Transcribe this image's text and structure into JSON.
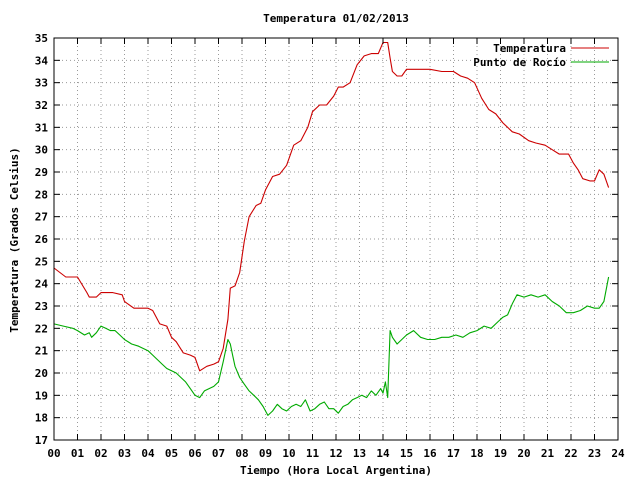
{
  "chart_data": {
    "type": "line",
    "title": "Temperatura 01/02/2013",
    "xlabel": "Tiempo (Hora Local Argentina)",
    "ylabel": "Temperatura (Grados Celsius)",
    "xlim": [
      0,
      24
    ],
    "ylim": [
      17,
      35
    ],
    "x_ticks": [
      "00",
      "01",
      "02",
      "03",
      "04",
      "05",
      "06",
      "07",
      "08",
      "09",
      "10",
      "11",
      "12",
      "13",
      "14",
      "15",
      "16",
      "17",
      "18",
      "19",
      "20",
      "21",
      "22",
      "23",
      "24"
    ],
    "y_ticks": [
      17,
      18,
      19,
      20,
      21,
      22,
      23,
      24,
      25,
      26,
      27,
      28,
      29,
      30,
      31,
      32,
      33,
      34,
      35
    ],
    "grid": true,
    "legend_position": "top-right",
    "series": [
      {
        "name": "Temperatura",
        "color": "#cc0000",
        "x": [
          0.0,
          0.5,
          1.0,
          1.4,
          1.5,
          1.8,
          2.0,
          2.5,
          2.9,
          3.0,
          3.4,
          4.0,
          4.2,
          4.5,
          4.8,
          5.0,
          5.2,
          5.5,
          5.8,
          6.0,
          6.2,
          6.5,
          6.8,
          7.0,
          7.2,
          7.4,
          7.5,
          7.7,
          7.9,
          8.1,
          8.3,
          8.6,
          8.8,
          9.0,
          9.3,
          9.6,
          9.9,
          10.2,
          10.5,
          10.8,
          11.0,
          11.3,
          11.6,
          11.9,
          12.1,
          12.3,
          12.6,
          12.9,
          13.2,
          13.5,
          13.8,
          14.0,
          14.2,
          14.3,
          14.4,
          14.6,
          14.8,
          15.0,
          15.4,
          16.0,
          16.5,
          17.0,
          17.3,
          17.6,
          17.9,
          18.2,
          18.5,
          18.8,
          19.1,
          19.5,
          19.8,
          20.2,
          20.5,
          20.9,
          21.2,
          21.5,
          21.9,
          22.1,
          22.3,
          22.5,
          22.8,
          23.0,
          23.2,
          23.4,
          23.6
        ],
        "values": [
          24.7,
          24.3,
          24.3,
          23.6,
          23.4,
          23.4,
          23.6,
          23.6,
          23.5,
          23.2,
          22.9,
          22.9,
          22.8,
          22.2,
          22.1,
          21.6,
          21.4,
          20.9,
          20.8,
          20.7,
          20.1,
          20.3,
          20.4,
          20.5,
          21.1,
          22.4,
          23.8,
          23.9,
          24.5,
          25.9,
          27.0,
          27.5,
          27.6,
          28.2,
          28.8,
          28.9,
          29.3,
          30.2,
          30.4,
          31.0,
          31.7,
          32.0,
          32.0,
          32.4,
          32.8,
          32.8,
          33.0,
          33.8,
          34.2,
          34.3,
          34.3,
          34.8,
          34.8,
          34.1,
          33.5,
          33.3,
          33.3,
          33.6,
          33.6,
          33.6,
          33.5,
          33.5,
          33.3,
          33.2,
          33.0,
          32.3,
          31.8,
          31.6,
          31.2,
          30.8,
          30.7,
          30.4,
          30.3,
          30.2,
          30.0,
          29.8,
          29.8,
          29.4,
          29.1,
          28.7,
          28.6,
          28.6,
          29.1,
          28.9,
          28.3
        ]
      },
      {
        "name": "Punto de Rocío",
        "color": "#00aa00",
        "x": [
          0.0,
          0.4,
          0.8,
          1.0,
          1.3,
          1.5,
          1.6,
          1.8,
          2.0,
          2.2,
          2.4,
          2.6,
          2.8,
          3.0,
          3.3,
          3.6,
          4.0,
          4.2,
          4.4,
          4.6,
          4.8,
          5.0,
          5.2,
          5.4,
          5.6,
          5.8,
          6.0,
          6.2,
          6.4,
          6.6,
          6.8,
          7.0,
          7.2,
          7.4,
          7.5,
          7.6,
          7.7,
          7.9,
          8.1,
          8.3,
          8.5,
          8.7,
          8.9,
          9.1,
          9.3,
          9.5,
          9.7,
          9.9,
          10.1,
          10.3,
          10.5,
          10.7,
          10.9,
          11.1,
          11.3,
          11.5,
          11.7,
          11.9,
          12.1,
          12.3,
          12.5,
          12.7,
          12.9,
          13.1,
          13.3,
          13.5,
          13.7,
          13.9,
          14.0,
          14.1,
          14.2,
          14.3,
          14.4,
          14.6,
          14.8,
          15.0,
          15.3,
          15.6,
          15.9,
          16.2,
          16.5,
          16.8,
          17.1,
          17.4,
          17.7,
          18.0,
          18.3,
          18.6,
          18.9,
          19.1,
          19.3,
          19.5,
          19.7,
          20.0,
          20.3,
          20.6,
          20.9,
          21.2,
          21.5,
          21.8,
          22.1,
          22.4,
          22.7,
          23.0,
          23.2,
          23.4,
          23.6
        ],
        "values": [
          22.2,
          22.1,
          22.0,
          21.9,
          21.7,
          21.8,
          21.6,
          21.8,
          22.1,
          22.0,
          21.9,
          21.9,
          21.7,
          21.5,
          21.3,
          21.2,
          21.0,
          20.8,
          20.6,
          20.4,
          20.2,
          20.1,
          20.0,
          19.8,
          19.6,
          19.3,
          19.0,
          18.9,
          19.2,
          19.3,
          19.4,
          19.6,
          20.5,
          21.5,
          21.3,
          20.8,
          20.3,
          19.8,
          19.5,
          19.2,
          19.0,
          18.8,
          18.5,
          18.1,
          18.3,
          18.6,
          18.4,
          18.3,
          18.5,
          18.6,
          18.5,
          18.8,
          18.3,
          18.4,
          18.6,
          18.7,
          18.4,
          18.4,
          18.2,
          18.5,
          18.6,
          18.8,
          18.9,
          19.0,
          18.9,
          19.2,
          19.0,
          19.3,
          19.1,
          19.6,
          18.9,
          21.9,
          21.6,
          21.3,
          21.5,
          21.7,
          21.9,
          21.6,
          21.5,
          21.5,
          21.6,
          21.6,
          21.7,
          21.6,
          21.8,
          21.9,
          22.1,
          22.0,
          22.3,
          22.5,
          22.6,
          23.1,
          23.5,
          23.4,
          23.5,
          23.4,
          23.5,
          23.2,
          23.0,
          22.7,
          22.7,
          22.8,
          23.0,
          22.9,
          22.9,
          23.2,
          24.3
        ]
      }
    ]
  }
}
